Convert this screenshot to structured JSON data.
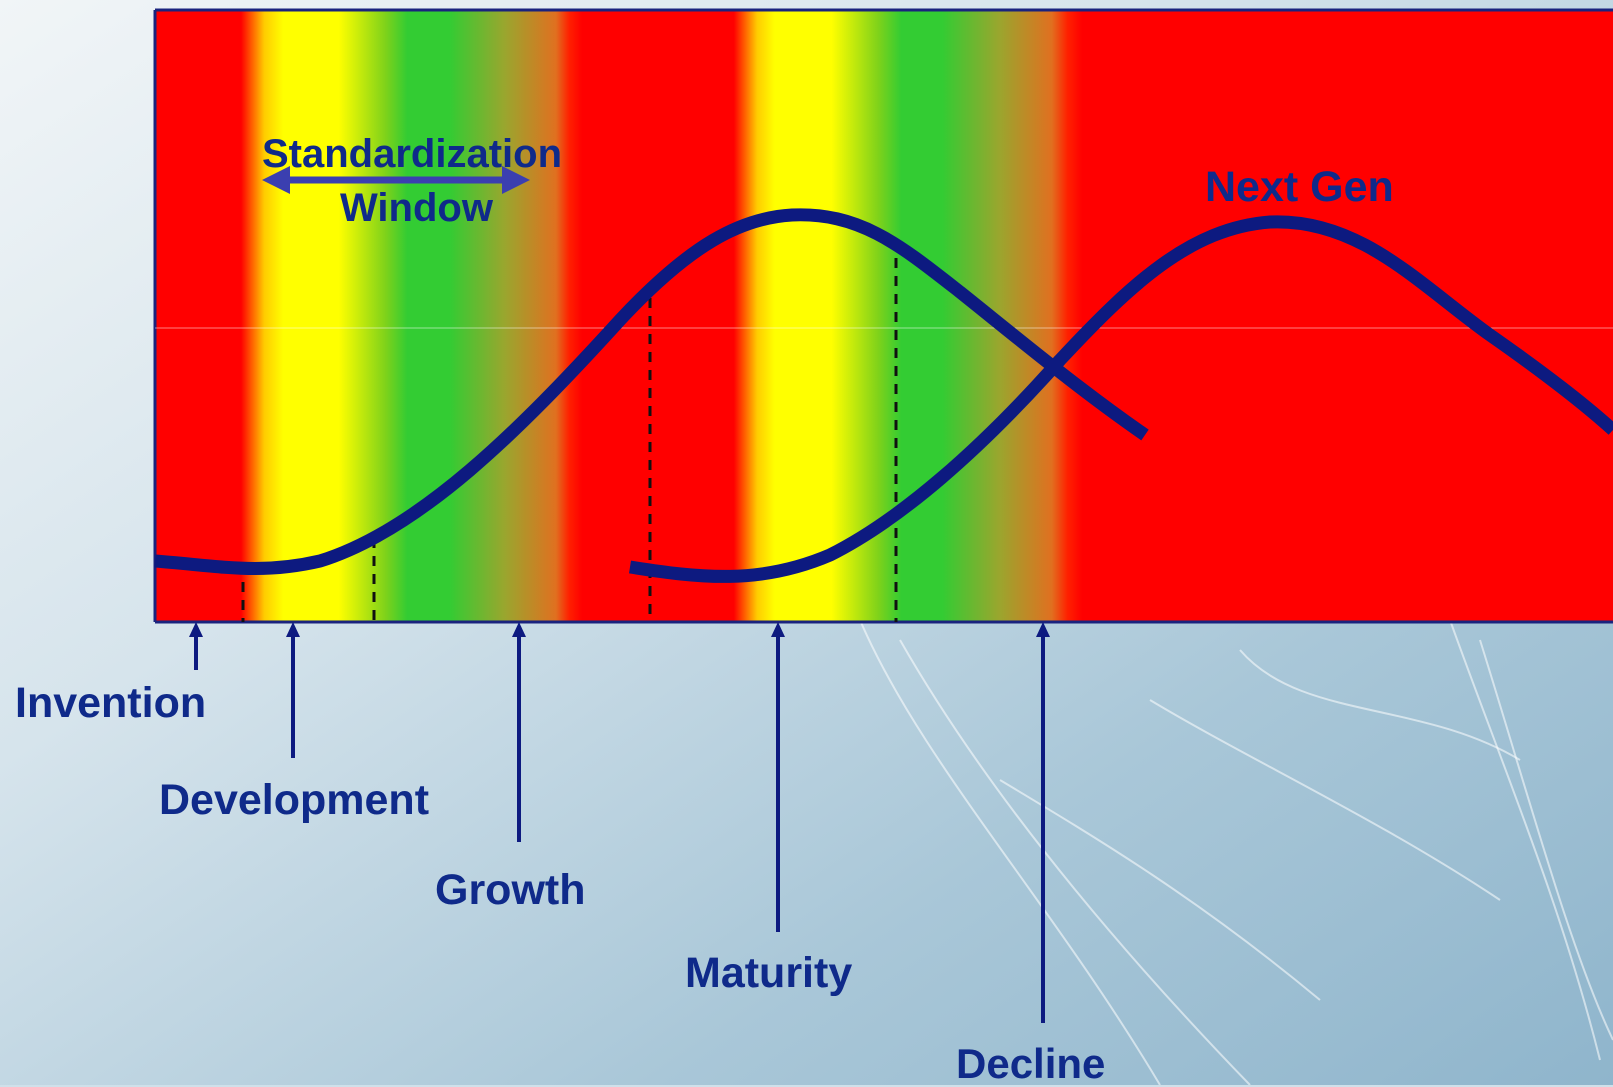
{
  "title": "",
  "labels": {
    "standardization_line1": "Standardization",
    "standardization_line2": "Window",
    "next_gen": "Next Gen"
  },
  "stages": [
    {
      "name": "invention",
      "label": "Invention"
    },
    {
      "name": "development",
      "label": "Development"
    },
    {
      "name": "growth",
      "label": "Growth"
    },
    {
      "name": "maturity",
      "label": "Maturity"
    },
    {
      "name": "decline",
      "label": "Decline"
    }
  ],
  "colors": {
    "band_red": "#ff0000",
    "band_yellow": "#ffff00",
    "band_green": "#33cc33",
    "curve": "#0d1a80",
    "label_text": "#0f2a8a",
    "frame": "#1a237e",
    "background_light": "#eef3f6",
    "background_blue": "#9dbfd2"
  }
}
